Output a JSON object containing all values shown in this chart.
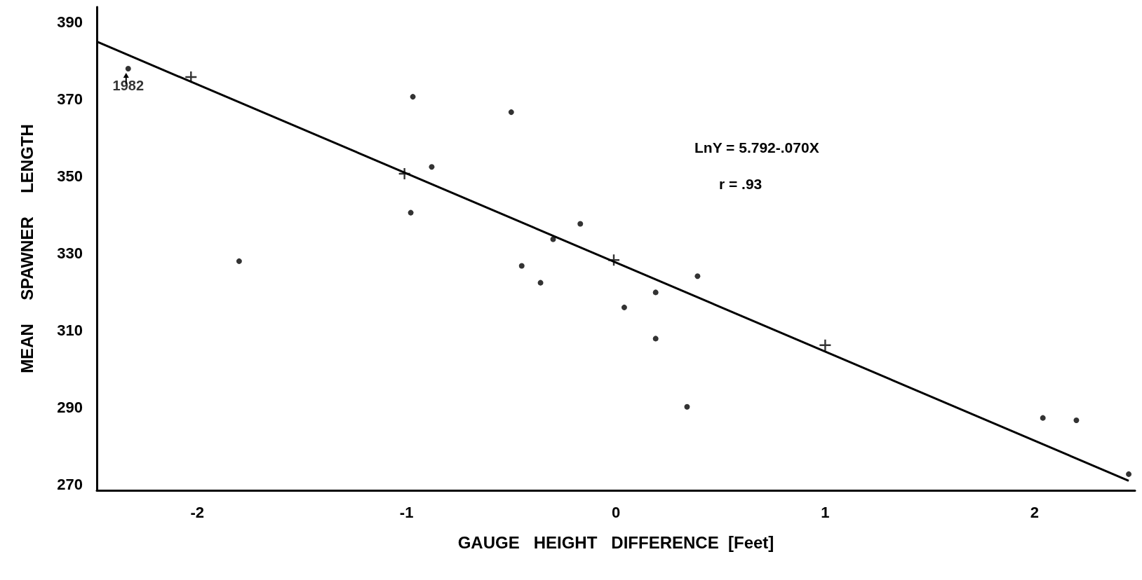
{
  "chart_data": {
    "type": "scatter",
    "xlabel": "GAUGE   HEIGHT   DIFFERENCE  [Feet]",
    "ylabel": "MEAN     SPAWNER     LENGTH",
    "xlim": [
      -2.48,
      2.48
    ],
    "xticks": [
      -2,
      -1,
      0,
      1,
      2
    ],
    "ylim": [
      268.5,
      394
    ],
    "yticks": [
      270,
      290,
      310,
      330,
      350,
      370,
      390
    ],
    "grid": false,
    "series": [
      {
        "color": "#000000",
        "marker": "circle",
        "x": [
          -2.33,
          -0.97,
          -0.5,
          -0.88,
          -0.98,
          -0.17,
          -0.3,
          -0.45,
          -0.36,
          0.19,
          0.39,
          0.04,
          0.19,
          2.04,
          2.2,
          2.45,
          0.34,
          -1.8
        ],
        "values": [
          378,
          370.7,
          366.7,
          352.5,
          340.6,
          337.7,
          333.7,
          326.8,
          322.4,
          319.9,
          324.1,
          316,
          307.9,
          287.3,
          286.7,
          272.7,
          290.2,
          328
        ]
      },
      {
        "color": "#000000",
        "marker": "cross",
        "x": [
          -2.03,
          -1.01,
          -0.01,
          1.0
        ],
        "values": [
          375.8,
          350.7,
          328.3,
          306.2
        ]
      },
      {
        "type": "line",
        "color": "#000000",
        "marker": "none",
        "line_style": "solid",
        "x": [
          -2.48,
          2.45
        ],
        "values": [
          385,
          271
        ]
      }
    ],
    "annotations": [
      {
        "text": "1982",
        "x": -2.33,
        "y": 378
      },
      "LnY = 5.792-.070X",
      "r = .93"
    ]
  }
}
